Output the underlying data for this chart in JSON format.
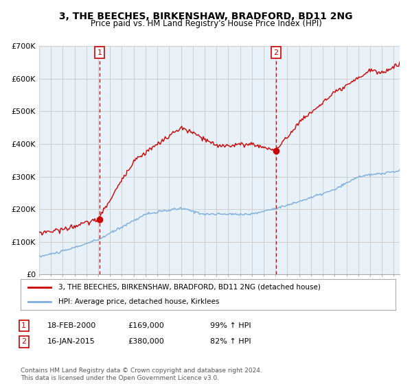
{
  "title": "3, THE BEECHES, BIRKENSHAW, BRADFORD, BD11 2NG",
  "subtitle": "Price paid vs. HM Land Registry's House Price Index (HPI)",
  "ylim": [
    0,
    700000
  ],
  "yticks": [
    0,
    100000,
    200000,
    300000,
    400000,
    500000,
    600000,
    700000
  ],
  "ytick_labels": [
    "£0",
    "£100K",
    "£200K",
    "£300K",
    "£400K",
    "£500K",
    "£600K",
    "£700K"
  ],
  "red_color": "#cc0000",
  "blue_color": "#7aade0",
  "vline_color": "#cc0000",
  "grid_color": "#cccccc",
  "bg_chart_color": "#e8f0f8",
  "background_color": "#ffffff",
  "sale1_x": 2000.13,
  "sale1_y": 169000,
  "sale1_label": "1",
  "sale2_x": 2015.05,
  "sale2_y": 380000,
  "sale2_label": "2",
  "legend_red_label": "3, THE BEECHES, BIRKENSHAW, BRADFORD, BD11 2NG (detached house)",
  "legend_blue_label": "HPI: Average price, detached house, Kirklees",
  "table_row1": [
    "1",
    "18-FEB-2000",
    "£169,000",
    "99% ↑ HPI"
  ],
  "table_row2": [
    "2",
    "16-JAN-2015",
    "£380,000",
    "82% ↑ HPI"
  ],
  "footnote": "Contains HM Land Registry data © Crown copyright and database right 2024.\nThis data is licensed under the Open Government Licence v3.0.",
  "xmin": 1995,
  "xmax": 2025.5
}
